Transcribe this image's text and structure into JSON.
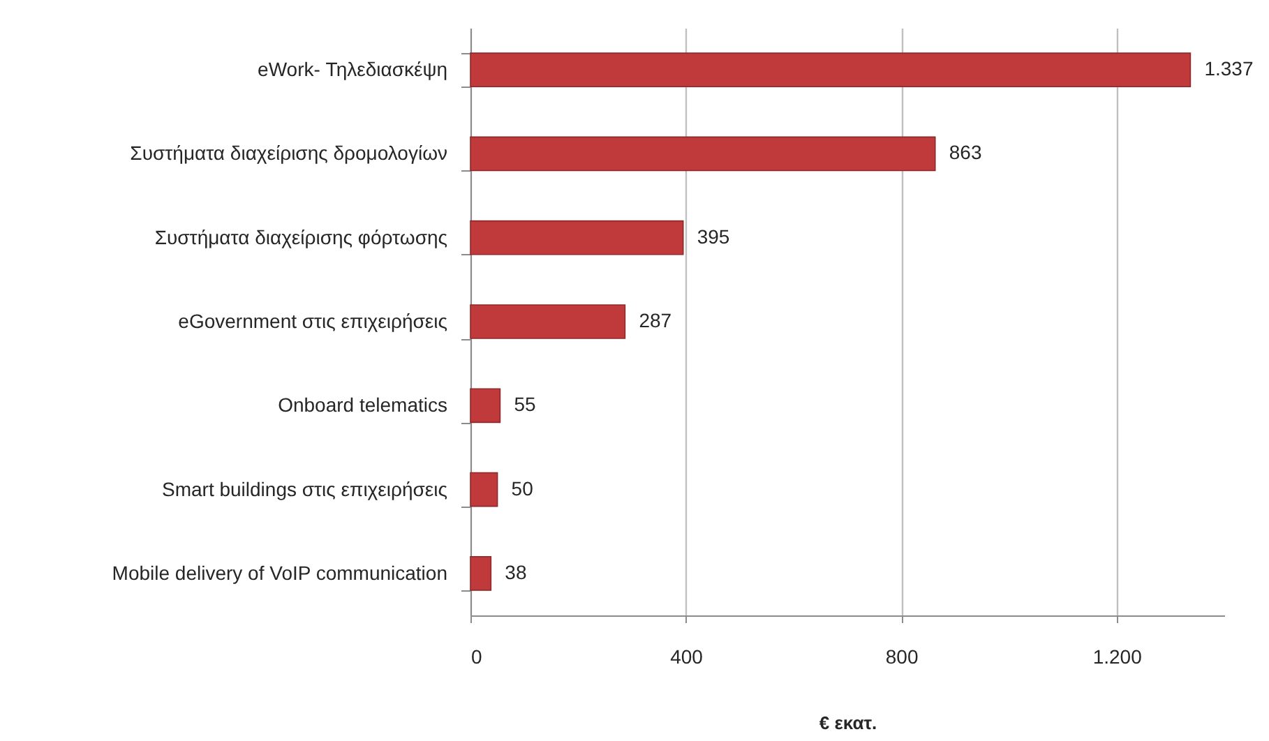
{
  "chart_data": {
    "type": "bar",
    "orientation": "horizontal",
    "categories": [
      "eWork- Τηλεδιασκέψη",
      "Συστήματα διαχείρισης δρομολογίων",
      "Συστήματα διαχείρισης φόρτωσης",
      "eGovernment στις επιχειρήσεις",
      "Onboard telematics",
      "Smart buildings στις επιχειρήσεις",
      "Mobile delivery of VoIP communication"
    ],
    "values": [
      1337,
      863,
      395,
      287,
      55,
      50,
      38
    ],
    "value_labels": [
      "1.337",
      "863",
      "395",
      "287",
      "55",
      "50",
      "38"
    ],
    "color": "#c0393b",
    "xlabel": "€ εκατ.",
    "xlim": [
      0,
      1400
    ],
    "xticks": [
      0,
      400,
      800,
      {
        "value": 1200,
        "label": "1.200"
      }
    ],
    "grid": "x"
  }
}
